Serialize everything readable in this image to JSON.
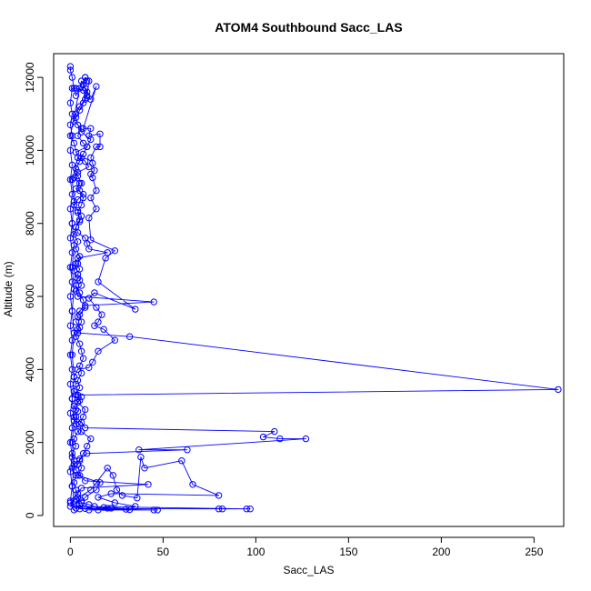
{
  "chart_data": {
    "type": "line",
    "title": "ATOM4 Southbound Sacc_LAS",
    "xlabel": "Sacc_LAS",
    "ylabel": "Altitude (m)",
    "xlim": [
      -9,
      266
    ],
    "ylim": [
      -300,
      12650
    ],
    "xticks": [
      0,
      50,
      100,
      150,
      200,
      250
    ],
    "yticks": [
      0,
      2000,
      4000,
      6000,
      8000,
      10000,
      12000
    ],
    "grid": false,
    "legend": "none",
    "series": [
      {
        "color": "#0000ff",
        "marker": "open-circle",
        "points": [
          [
            0,
            12300
          ],
          [
            0,
            12200
          ],
          [
            1,
            12000
          ],
          [
            2,
            11700
          ],
          [
            3,
            11500
          ],
          [
            8,
            12000
          ],
          [
            9,
            11900
          ],
          [
            7,
            11800
          ],
          [
            9,
            11600
          ],
          [
            8,
            11400
          ],
          [
            5,
            11200
          ],
          [
            3,
            11000
          ],
          [
            2,
            10800
          ],
          [
            6,
            10600
          ],
          [
            4,
            10400
          ],
          [
            7,
            10200
          ],
          [
            9,
            10100
          ],
          [
            3,
            9950
          ],
          [
            6,
            9800
          ],
          [
            8,
            9700
          ],
          [
            10,
            9550
          ],
          [
            4,
            9400
          ],
          [
            2,
            9250
          ],
          [
            5,
            9100
          ],
          [
            3,
            8950
          ],
          [
            7,
            8800
          ],
          [
            4,
            8650
          ],
          [
            2,
            8500
          ],
          [
            4,
            8350
          ],
          [
            6,
            8200
          ],
          [
            5,
            8050
          ],
          [
            3,
            7900
          ],
          [
            4,
            7750
          ],
          [
            8,
            7600
          ],
          [
            9,
            7450
          ],
          [
            10,
            7300
          ],
          [
            20,
            7200
          ],
          [
            4,
            7050
          ],
          [
            3,
            6900
          ],
          [
            5,
            6750
          ],
          [
            4,
            6600
          ],
          [
            5,
            6450
          ],
          [
            6,
            6300
          ],
          [
            3,
            6150
          ],
          [
            4,
            6000
          ],
          [
            45,
            5850
          ],
          [
            8,
            5750
          ],
          [
            5,
            5600
          ],
          [
            4,
            5450
          ],
          [
            3,
            5300
          ],
          [
            5,
            5150
          ],
          [
            4,
            5000
          ],
          [
            32,
            4900
          ],
          [
            263,
            3450
          ],
          [
            4,
            3300
          ],
          [
            5,
            3150
          ],
          [
            2,
            3000
          ],
          [
            4,
            2850
          ],
          [
            3,
            2700
          ],
          [
            6,
            2550
          ],
          [
            8,
            2400
          ],
          [
            110,
            2300
          ],
          [
            104,
            2150
          ],
          [
            113,
            2100
          ],
          [
            127,
            2100
          ],
          [
            37,
            1800
          ],
          [
            63,
            1800
          ],
          [
            9,
            1700
          ],
          [
            5,
            1550
          ],
          [
            4,
            1400
          ],
          [
            3,
            1250
          ],
          [
            5,
            1100
          ],
          [
            8,
            950
          ],
          [
            42,
            850
          ],
          [
            6,
            750
          ],
          [
            4,
            600
          ],
          [
            3,
            450
          ],
          [
            5,
            300
          ],
          [
            2,
            150
          ],
          [
            3,
            200
          ],
          [
            20,
            200
          ],
          [
            15,
            150
          ],
          [
            10,
            150
          ],
          [
            45,
            150
          ],
          [
            47,
            150
          ],
          [
            5,
            180
          ],
          [
            30,
            170
          ],
          [
            32,
            160
          ],
          [
            8,
            190
          ],
          [
            80,
            180
          ],
          [
            82,
            180
          ],
          [
            95,
            180
          ],
          [
            97,
            180
          ],
          [
            0,
            250
          ],
          [
            2,
            300
          ],
          [
            6,
            400
          ],
          [
            8,
            500
          ],
          [
            14,
            700
          ],
          [
            16,
            900
          ],
          [
            4,
            1100
          ],
          [
            6,
            1300
          ],
          [
            5,
            1500
          ],
          [
            7,
            1700
          ],
          [
            9,
            1900
          ],
          [
            11,
            2100
          ],
          [
            6,
            2300
          ],
          [
            5,
            2500
          ],
          [
            7,
            2700
          ],
          [
            8,
            2900
          ],
          [
            4,
            3100
          ],
          [
            3,
            3300
          ],
          [
            5,
            3500
          ],
          [
            4,
            3700
          ],
          [
            6,
            3900
          ],
          [
            5,
            4100
          ],
          [
            7,
            4300
          ],
          [
            6,
            4500
          ],
          [
            5,
            4700
          ],
          [
            3,
            4900
          ],
          [
            4,
            5100
          ],
          [
            6,
            5300
          ],
          [
            5,
            5500
          ],
          [
            8,
            5700
          ],
          [
            7,
            5900
          ],
          [
            5,
            6100
          ],
          [
            3,
            6300
          ],
          [
            4,
            6500
          ],
          [
            2,
            6700
          ],
          [
            4,
            6900
          ],
          [
            5,
            7100
          ],
          [
            3,
            7300
          ],
          [
            4,
            7500
          ],
          [
            2,
            7700
          ],
          [
            3,
            7900
          ],
          [
            5,
            8100
          ],
          [
            4,
            8300
          ],
          [
            6,
            8500
          ],
          [
            7,
            8700
          ],
          [
            5,
            8900
          ],
          [
            6,
            9100
          ],
          [
            4,
            9300
          ],
          [
            3,
            9500
          ],
          [
            5,
            9700
          ],
          [
            7,
            9900
          ],
          [
            9,
            10100
          ],
          [
            11,
            10300
          ],
          [
            6,
            10500
          ],
          [
            4,
            10700
          ],
          [
            3,
            10900
          ],
          [
            5,
            11100
          ],
          [
            7,
            11300
          ],
          [
            9,
            11500
          ],
          [
            8,
            11700
          ],
          [
            6,
            11900
          ],
          [
            5,
            11700
          ],
          [
            0,
            10400
          ],
          [
            2,
            10200
          ],
          [
            4,
            9800
          ],
          [
            1,
            9200
          ],
          [
            2,
            8600
          ],
          [
            1,
            8000
          ],
          [
            2,
            7400
          ],
          [
            1,
            6800
          ],
          [
            2,
            6200
          ],
          [
            1,
            5600
          ],
          [
            2,
            5000
          ],
          [
            1,
            4400
          ],
          [
            2,
            3800
          ],
          [
            1,
            3200
          ],
          [
            2,
            2600
          ],
          [
            1,
            2000
          ],
          [
            2,
            1400
          ],
          [
            1,
            800
          ],
          [
            2,
            400
          ],
          [
            0,
            350
          ],
          [
            11,
            700
          ],
          [
            14,
            900
          ],
          [
            20,
            1300
          ],
          [
            23,
            1100
          ],
          [
            25,
            700
          ],
          [
            28,
            550
          ],
          [
            36,
            480
          ],
          [
            38,
            1600
          ],
          [
            40,
            1300
          ],
          [
            60,
            1500
          ],
          [
            66,
            850
          ],
          [
            80,
            550
          ],
          [
            22,
            600
          ],
          [
            15,
            500
          ],
          [
            24,
            350
          ],
          [
            35,
            250
          ],
          [
            22,
            200
          ],
          [
            18,
            220
          ],
          [
            13,
            250
          ],
          [
            10,
            300
          ],
          [
            6,
            350
          ],
          [
            4,
            500
          ],
          [
            3,
            700
          ],
          [
            2,
            900
          ],
          [
            3,
            1100
          ],
          [
            1,
            1300
          ],
          [
            2,
            1500
          ],
          [
            1,
            1700
          ],
          [
            3,
            1900
          ],
          [
            2,
            2100
          ],
          [
            4,
            2300
          ],
          [
            3,
            2500
          ],
          [
            2,
            2700
          ],
          [
            3,
            2900
          ],
          [
            4,
            3100
          ],
          [
            6,
            3250
          ],
          [
            2,
            3400
          ],
          [
            3,
            3600
          ],
          [
            2,
            3800
          ],
          [
            4,
            4000
          ],
          [
            10,
            4050
          ],
          [
            12,
            4200
          ],
          [
            15,
            4500
          ],
          [
            24,
            4800
          ],
          [
            18,
            5100
          ],
          [
            13,
            5200
          ],
          [
            15,
            5300
          ],
          [
            17,
            5500
          ],
          [
            14,
            5700
          ],
          [
            10,
            5950
          ],
          [
            13,
            6100
          ],
          [
            35,
            5650
          ],
          [
            15,
            6400
          ],
          [
            19,
            7050
          ],
          [
            24,
            7250
          ],
          [
            11,
            7550
          ],
          [
            10,
            8150
          ],
          [
            14,
            8400
          ],
          [
            11,
            8700
          ],
          [
            14,
            8900
          ],
          [
            12,
            9250
          ],
          [
            11,
            9350
          ],
          [
            13,
            9450
          ],
          [
            12,
            9650
          ],
          [
            11,
            9800
          ],
          [
            14,
            10100
          ],
          [
            16,
            10100
          ],
          [
            16,
            10450
          ],
          [
            10,
            10400
          ],
          [
            11,
            10600
          ],
          [
            7,
            10600
          ],
          [
            14,
            11750
          ],
          [
            11,
            11400
          ],
          [
            9,
            11450
          ],
          [
            10,
            11900
          ],
          [
            8,
            12000
          ],
          [
            7,
            11650
          ],
          [
            3,
            11700
          ],
          [
            1,
            11700
          ],
          [
            0,
            11300
          ],
          [
            1,
            11000
          ],
          [
            0,
            10700
          ],
          [
            1,
            10400
          ],
          [
            0,
            10000
          ],
          [
            1,
            9600
          ],
          [
            0,
            9200
          ],
          [
            1,
            8800
          ],
          [
            0,
            8400
          ],
          [
            1,
            8000
          ],
          [
            0,
            7600
          ],
          [
            1,
            7200
          ],
          [
            0,
            6800
          ],
          [
            1,
            6400
          ],
          [
            0,
            6000
          ],
          [
            1,
            5600
          ],
          [
            0,
            5200
          ],
          [
            1,
            4800
          ],
          [
            0,
            4400
          ],
          [
            1,
            4000
          ],
          [
            0,
            3600
          ],
          [
            1,
            3200
          ],
          [
            0,
            2800
          ],
          [
            1,
            2400
          ],
          [
            0,
            2000
          ],
          [
            1,
            1600
          ],
          [
            0,
            1200
          ],
          [
            1,
            800
          ],
          [
            0,
            400
          ]
        ]
      }
    ]
  }
}
